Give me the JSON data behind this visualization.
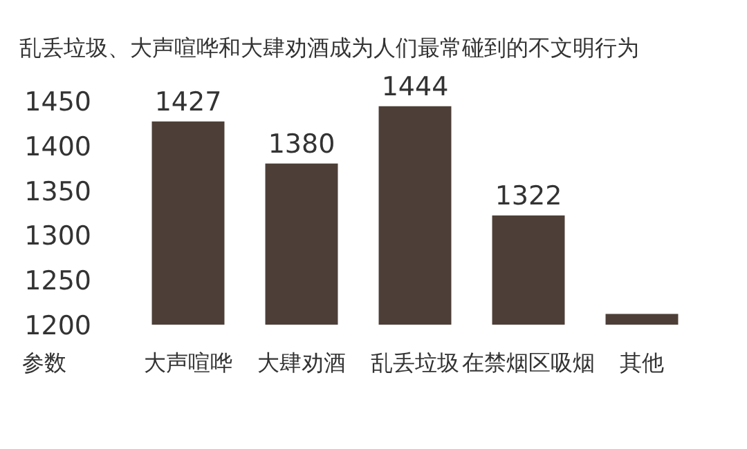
{
  "chart_data": {
    "type": "bar",
    "title": "乱丢垃圾、大声喧哗和大肆劝酒成为人们最常碰到的不文明行为",
    "ylabel": "参数",
    "categories": [
      "大声喧哗",
      "大肆劝酒",
      "乱丢垃圾",
      "在禁烟区吸烟",
      "其他"
    ],
    "values": [
      1427,
      1380,
      1444,
      1322,
      1212
    ],
    "value_labels": [
      "1427",
      "1380",
      "1444",
      "1322",
      null
    ],
    "color": "#4d3f37",
    "ylim": [
      1200,
      1450
    ],
    "yticks": [
      1200,
      1250,
      1300,
      1350,
      1400,
      1450
    ],
    "grid": false
  }
}
